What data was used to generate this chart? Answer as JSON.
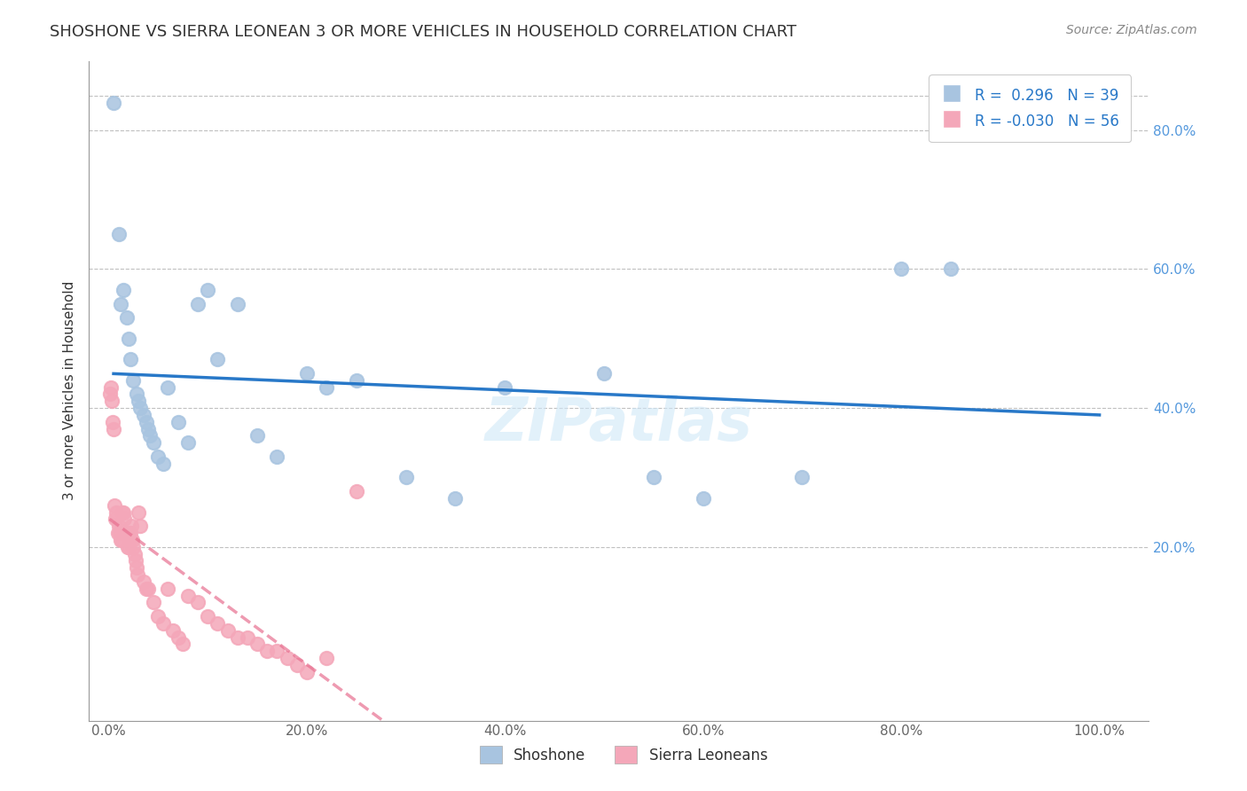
{
  "title": "SHOSHONE VS SIERRA LEONEAN 3 OR MORE VEHICLES IN HOUSEHOLD CORRELATION CHART",
  "source": "Source: ZipAtlas.com",
  "ylabel": "3 or more Vehicles in Household",
  "xlabel_ticks": [
    "0.0%",
    "20.0%",
    "40.0%",
    "60.0%",
    "80.0%",
    "100.0%"
  ],
  "xlabel_vals": [
    0,
    20,
    40,
    60,
    80,
    100
  ],
  "ylabel_ticks": [
    "20.0%",
    "40.0%",
    "60.0%",
    "80.0%"
  ],
  "ylabel_vals": [
    20,
    40,
    60,
    80
  ],
  "ylim": [
    -5,
    90
  ],
  "xlim": [
    -2,
    105
  ],
  "shoshone_R": 0.296,
  "shoshone_N": 39,
  "sierra_R": -0.03,
  "sierra_N": 56,
  "shoshone_color": "#a8c4e0",
  "sierra_color": "#f4a7b9",
  "shoshone_line_color": "#2878c8",
  "sierra_line_color": "#e87090",
  "background_color": "#ffffff",
  "grid_color": "#c0c0c0",
  "watermark": "ZIPatlas",
  "shoshone_x": [
    0.5,
    1.0,
    1.2,
    1.5,
    1.8,
    2.0,
    2.2,
    2.5,
    2.8,
    3.0,
    3.2,
    3.5,
    3.8,
    4.0,
    4.2,
    4.5,
    5.0,
    5.5,
    6.0,
    7.0,
    8.0,
    9.0,
    10.0,
    11.0,
    13.0,
    15.0,
    17.0,
    20.0,
    22.0,
    25.0,
    30.0,
    35.0,
    40.0,
    50.0,
    55.0,
    60.0,
    70.0,
    80.0,
    85.0
  ],
  "shoshone_y": [
    84,
    65,
    55,
    57,
    53,
    50,
    47,
    44,
    42,
    41,
    40,
    39,
    38,
    37,
    36,
    35,
    33,
    32,
    43,
    38,
    35,
    55,
    57,
    47,
    55,
    36,
    33,
    45,
    43,
    44,
    30,
    27,
    43,
    45,
    30,
    27,
    30,
    60,
    60
  ],
  "sierra_x": [
    0.1,
    0.2,
    0.3,
    0.4,
    0.5,
    0.6,
    0.7,
    0.8,
    0.9,
    1.0,
    1.1,
    1.2,
    1.3,
    1.4,
    1.5,
    1.6,
    1.7,
    1.8,
    1.9,
    2.0,
    2.1,
    2.2,
    2.3,
    2.4,
    2.5,
    2.6,
    2.7,
    2.8,
    2.9,
    3.0,
    3.2,
    3.5,
    3.8,
    4.0,
    4.5,
    5.0,
    5.5,
    6.0,
    6.5,
    7.0,
    7.5,
    8.0,
    9.0,
    10.0,
    11.0,
    12.0,
    13.0,
    14.0,
    15.0,
    16.0,
    17.0,
    18.0,
    19.0,
    20.0,
    22.0,
    25.0
  ],
  "sierra_y": [
    42,
    43,
    41,
    38,
    37,
    26,
    24,
    25,
    22,
    23,
    22,
    21,
    21,
    25,
    25,
    24,
    22,
    22,
    20,
    20,
    22,
    22,
    23,
    21,
    20,
    19,
    18,
    17,
    16,
    25,
    23,
    15,
    14,
    14,
    12,
    10,
    9,
    14,
    8,
    7,
    6,
    13,
    12,
    10,
    9,
    8,
    7,
    7,
    6,
    5,
    5,
    4,
    3,
    2,
    4,
    28
  ]
}
